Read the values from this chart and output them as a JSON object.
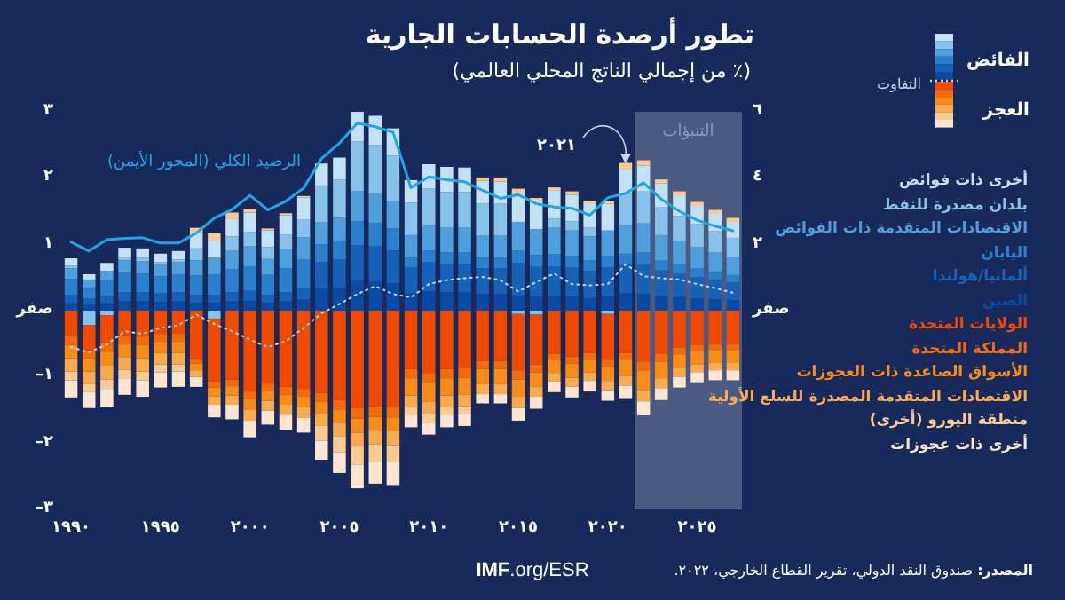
{
  "chart_data": {
    "type": "bar",
    "stacked": true,
    "title": "تطور أرصدة الحسابات الجارية",
    "subtitle": "(٪ من إجمالي الناتج المحلي العالمي)",
    "x": [
      1990,
      1991,
      1992,
      1993,
      1994,
      1995,
      1996,
      1997,
      1998,
      1999,
      2000,
      2001,
      2002,
      2003,
      2004,
      2005,
      2006,
      2007,
      2008,
      2009,
      2010,
      2011,
      2012,
      2013,
      2014,
      2015,
      2016,
      2017,
      2018,
      2019,
      2020,
      2021,
      2022,
      2023,
      2024,
      2025,
      2026,
      2027
    ],
    "xlim": [
      1989.5,
      2027.5
    ],
    "xticks": [
      {
        "value": 1990,
        "label": "١٩٩٠"
      },
      {
        "value": 1995,
        "label": "١٩٩٥"
      },
      {
        "value": 2000,
        "label": "٢٠٠٠"
      },
      {
        "value": 2005,
        "label": "٢٠٠٥"
      },
      {
        "value": 2010,
        "label": "٢٠١٠"
      },
      {
        "value": 2015,
        "label": "٢٠١٥"
      },
      {
        "value": 2020,
        "label": "٢٠٢٠"
      },
      {
        "value": 2025,
        "label": "٢٠٢٥"
      }
    ],
    "ylim": [
      -3,
      3
    ],
    "yticks": [
      {
        "value": -3,
        "label": "٣–"
      },
      {
        "value": -2,
        "label": "٢–"
      },
      {
        "value": -1,
        "label": "١–"
      },
      {
        "value": 0,
        "label": "صفر"
      },
      {
        "value": 1,
        "label": "١"
      },
      {
        "value": 2,
        "label": "٢"
      },
      {
        "value": 3,
        "label": "٣"
      }
    ],
    "y2lim": [
      -6,
      6
    ],
    "y2ticks": [
      {
        "value": 0,
        "label": "صفر"
      },
      {
        "value": 2,
        "label": "٢"
      },
      {
        "value": 4,
        "label": "٤"
      },
      {
        "value": 6,
        "label": "٦"
      }
    ],
    "series": [
      {
        "name": "الصين",
        "color": "#0a4aa3",
        "values": [
          0.12,
          0.09,
          0.11,
          0.14,
          0.14,
          0.13,
          0.14,
          0.12,
          0.12,
          0.14,
          0.15,
          0.12,
          0.14,
          0.17,
          0.33,
          0.35,
          0.45,
          0.44,
          0.41,
          0.26,
          0.29,
          0.28,
          0.28,
          0.25,
          0.25,
          0.23,
          0.21,
          0.22,
          0.21,
          0.19,
          0.21,
          0.26,
          0.26,
          0.23,
          0.21,
          0.19,
          0.18,
          0.16
        ]
      },
      {
        "name": "ألمانيا/هولندا",
        "color": "#1762b9",
        "values": [
          0.12,
          0.09,
          0.11,
          0.14,
          0.14,
          0.13,
          0.14,
          0.12,
          0.12,
          0.14,
          0.15,
          0.12,
          0.14,
          0.17,
          0.4,
          0.42,
          0.54,
          0.53,
          0.5,
          0.39,
          0.44,
          0.43,
          0.43,
          0.39,
          0.39,
          0.49,
          0.45,
          0.45,
          0.44,
          0.41,
          0.44,
          0.43,
          0.44,
          0.38,
          0.35,
          0.32,
          0.29,
          0.27
        ]
      },
      {
        "name": "اليابان",
        "color": "#2a80cc",
        "values": [
          0.24,
          0.17,
          0.23,
          0.29,
          0.28,
          0.26,
          0.27,
          0.29,
          0.31,
          0.35,
          0.37,
          0.3,
          0.36,
          0.43,
          0.27,
          0.28,
          0.36,
          0.35,
          0.33,
          0.16,
          0.18,
          0.17,
          0.17,
          0.16,
          0.16,
          0.19,
          0.18,
          0.18,
          0.18,
          0.16,
          0.18,
          0.17,
          0.18,
          0.15,
          0.14,
          0.13,
          0.12,
          0.11
        ]
      },
      {
        "name": "الاقتصادات المتقدمة ذات الفوائض",
        "color": "#4f9fdc",
        "values": [
          0.16,
          0.12,
          0.15,
          0.19,
          0.19,
          0.17,
          0.18,
          0.23,
          0.25,
          0.28,
          0.3,
          0.24,
          0.29,
          0.34,
          0.33,
          0.35,
          0.45,
          0.44,
          0.41,
          0.33,
          0.38,
          0.37,
          0.37,
          0.33,
          0.33,
          0.43,
          0.39,
          0.4,
          0.38,
          0.36,
          0.38,
          0.43,
          0.44,
          0.38,
          0.35,
          0.32,
          0.29,
          0.27
        ]
      },
      {
        "name": "بلدان مصدرة للنفط",
        "color": "#87c2ea",
        "values": [
          0.04,
          -0.22,
          -0.07,
          0.05,
          0.05,
          0.04,
          0.04,
          0.18,
          -0.12,
          0.21,
          0.22,
          0.18,
          0.22,
          0.26,
          0.56,
          0.58,
          0.75,
          0.74,
          0.69,
          0.49,
          0.55,
          0.54,
          0.54,
          0.49,
          0.49,
          -0.05,
          -0.06,
          0.14,
          0.14,
          0.13,
          -0.05,
          0.47,
          0.48,
          0.42,
          0.38,
          0.35,
          0.32,
          0.29
        ]
      },
      {
        "name": "أخرى ذات فوائض",
        "color": "#c2e1f6",
        "values": [
          0.11,
          0.08,
          0.12,
          0.14,
          0.14,
          0.13,
          0.13,
          0.23,
          0.25,
          0.26,
          0.29,
          0.25,
          0.29,
          0.34,
          0.33,
          0.33,
          0.45,
          0.44,
          0.41,
          0.34,
          0.37,
          0.38,
          0.37,
          0.34,
          0.33,
          0.44,
          0.42,
          0.42,
          0.4,
          0.37,
          0.4,
          0.37,
          0.39,
          0.36,
          0.31,
          0.27,
          0.26,
          0.24
        ]
      },
      {
        "name": "الولايات المتحدة",
        "color": "#f04a00",
        "values": [
          -0.39,
          -0.38,
          -0.41,
          -0.38,
          -0.39,
          -0.35,
          -0.35,
          -0.73,
          -0.95,
          -1.04,
          -1.22,
          -1.1,
          -1.15,
          -1.18,
          -1.24,
          -1.35,
          -1.47,
          -1.44,
          -1.45,
          -0.88,
          -0.94,
          -0.88,
          -0.87,
          -0.76,
          -0.76,
          -0.85,
          -0.75,
          -0.65,
          -0.69,
          -0.64,
          -0.69,
          -0.64,
          -0.77,
          -0.65,
          -0.56,
          -0.52,
          -0.51,
          -0.51
        ]
      },
      {
        "name": "المملكة المتحدة",
        "color": "#f56b0a",
        "values": [
          -0.13,
          -0.13,
          -0.14,
          -0.13,
          -0.13,
          -0.12,
          -0.12,
          -0.07,
          -0.09,
          -0.1,
          -0.12,
          -0.11,
          -0.12,
          -0.12,
          -0.14,
          -0.15,
          -0.16,
          -0.16,
          -0.16,
          -0.14,
          -0.15,
          -0.14,
          -0.14,
          -0.12,
          -0.12,
          -0.14,
          -0.12,
          -0.1,
          -0.11,
          -0.1,
          -0.11,
          -0.11,
          -0.14,
          -0.12,
          -0.1,
          -0.09,
          -0.09,
          -0.09
        ]
      },
      {
        "name": "الأسواق الصاعدة ذات العجوزات",
        "color": "#f98c16",
        "values": [
          -0.2,
          -0.19,
          -0.21,
          -0.19,
          -0.2,
          -0.17,
          -0.17,
          -0.1,
          -0.13,
          -0.14,
          -0.16,
          -0.15,
          -0.15,
          -0.16,
          -0.18,
          -0.2,
          -0.21,
          -0.21,
          -0.21,
          -0.26,
          -0.28,
          -0.26,
          -0.26,
          -0.23,
          -0.23,
          -0.26,
          -0.22,
          -0.19,
          -0.21,
          -0.19,
          -0.21,
          -0.24,
          -0.29,
          -0.25,
          -0.21,
          -0.2,
          -0.19,
          -0.19
        ]
      },
      {
        "name": "الاقتصادات المتقدمة المصدرة للسلع الأولية",
        "color": "#fbab4e",
        "values": [
          -0.2,
          -0.19,
          -0.21,
          -0.19,
          -0.2,
          -0.17,
          -0.17,
          -0.1,
          -0.13,
          -0.14,
          -0.16,
          -0.15,
          -0.15,
          -0.16,
          -0.18,
          -0.2,
          -0.21,
          -0.21,
          -0.21,
          -0.18,
          -0.19,
          -0.18,
          -0.17,
          -0.15,
          -0.15,
          -0.17,
          -0.15,
          -0.13,
          -0.14,
          -0.13,
          -0.14,
          -0.14,
          -0.17,
          -0.15,
          -0.13,
          -0.12,
          -0.11,
          -0.11
        ]
      },
      {
        "name": "منطقة اليورو (أخرى)",
        "color": "#fdca92",
        "values": [
          -0.13,
          -0.12,
          -0.14,
          -0.13,
          -0.13,
          -0.12,
          -0.11,
          0.08,
          0.12,
          0.1,
          0.05,
          0.03,
          0.03,
          0.02,
          -0.22,
          -0.24,
          -0.27,
          -0.26,
          -0.26,
          -0.12,
          -0.13,
          -0.12,
          -0.12,
          0.05,
          0.06,
          0.06,
          0.05,
          0.05,
          0.05,
          0.04,
          0.04,
          0.1,
          0.08,
          0.06,
          0.06,
          0.06,
          0.06,
          0.06
        ]
      },
      {
        "name": "أخرى ذات عجوزات",
        "color": "#ffe4cf",
        "values": [
          -0.26,
          -0.24,
          -0.27,
          -0.25,
          -0.25,
          -0.23,
          -0.23,
          -0.15,
          -0.19,
          -0.22,
          -0.25,
          -0.21,
          -0.23,
          -0.22,
          -0.29,
          -0.31,
          -0.36,
          -0.33,
          -0.34,
          -0.18,
          -0.18,
          -0.18,
          -0.18,
          -0.14,
          -0.14,
          -0.19,
          -0.18,
          -0.16,
          -0.16,
          -0.16,
          -0.16,
          -0.19,
          -0.21,
          -0.18,
          -0.16,
          -0.15,
          -0.15,
          -0.15
        ]
      },
      {
        "name": "التفاوت",
        "type": "line",
        "line_style": "dotted",
        "color": "#c8d4ea",
        "values": [
          -0.55,
          -0.63,
          -0.51,
          -0.31,
          -0.35,
          -0.26,
          -0.22,
          -0.06,
          -0.2,
          -0.31,
          -0.44,
          -0.55,
          -0.46,
          -0.26,
          -0.04,
          0.1,
          0.25,
          0.37,
          0.25,
          0.2,
          0.4,
          0.46,
          0.49,
          0.51,
          0.46,
          0.29,
          0.43,
          0.56,
          0.4,
          0.38,
          0.4,
          0.7,
          0.52,
          0.49,
          0.47,
          0.4,
          0.34,
          0.27
        ]
      },
      {
        "name": "الرصيد الكلي (المحور الأيمن)",
        "type": "line",
        "axis": "y2",
        "color": "#1fa6ea",
        "values": [
          2.07,
          1.8,
          2.14,
          2.18,
          2.2,
          2.04,
          2.04,
          2.34,
          2.79,
          3.05,
          3.48,
          3.04,
          3.3,
          3.7,
          4.59,
          5.05,
          5.66,
          5.55,
          5.38,
          3.71,
          4.04,
          3.95,
          3.89,
          3.63,
          3.39,
          3.5,
          3.23,
          3.13,
          3.09,
          2.88,
          3.41,
          3.54,
          3.86,
          3.36,
          3.0,
          2.73,
          2.55,
          2.41
        ]
      }
    ],
    "bands": [
      {
        "axis": "x",
        "from": 2021.5,
        "to": 2027.5,
        "label": "التنبؤات",
        "color": "#4b5a80"
      }
    ],
    "annotations": [
      "الفائض",
      "العجز",
      {
        "text": "٢٠٢١",
        "x": 2021,
        "y": 2.13
      },
      "**المصدر:** صندوق النقد الدولي، تقرير القطاع الخارجي، ٢٠٢٢.",
      "**IMF**.org/ESR"
    ]
  }
}
